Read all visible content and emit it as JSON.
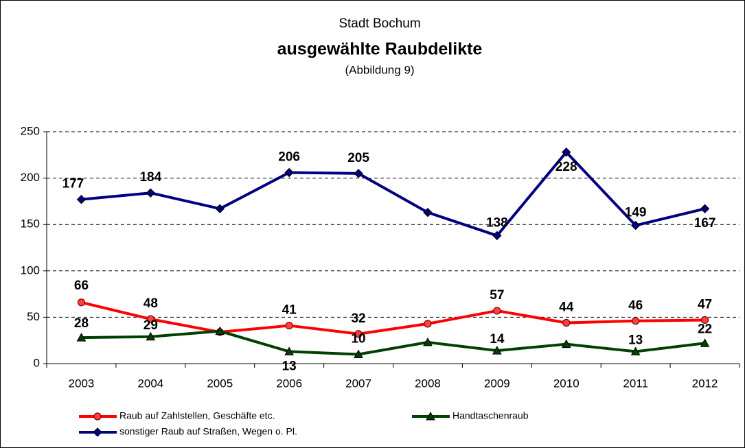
{
  "chart_data": {
    "type": "line",
    "title": "Stadt Bochum",
    "subtitle": "ausgewählte Raubdelikte",
    "annotations": [
      "(Abbildung 9)"
    ],
    "categories": [
      "2003",
      "2004",
      "2005",
      "2006",
      "2007",
      "2008",
      "2009",
      "2010",
      "2011",
      "2012"
    ],
    "series": [
      {
        "name": "Raub auf Zahlstellen, Geschäfte etc.",
        "color": "#ff0000",
        "marker": "circle",
        "values": [
          66,
          48,
          34,
          41,
          32,
          43,
          57,
          44,
          46,
          47
        ],
        "value_labels": [
          "66",
          "48",
          null,
          "41",
          "32",
          null,
          "57",
          "44",
          "46",
          "47"
        ]
      },
      {
        "name": "Handtaschenraub",
        "color": "#004000",
        "marker": "triangle",
        "values": [
          28,
          29,
          35,
          13,
          10,
          23,
          14,
          21,
          13,
          22
        ],
        "value_labels": [
          "28",
          "29",
          null,
          "13",
          "10",
          null,
          "14",
          null,
          "13",
          "22"
        ]
      },
      {
        "name": "sonstiger Raub auf Straßen, Wegen o. Pl.",
        "color": "#000080",
        "marker": "diamond",
        "values": [
          177,
          184,
          167,
          206,
          205,
          163,
          138,
          228,
          149,
          167
        ],
        "value_labels": [
          "177",
          "184",
          null,
          "206",
          "205",
          null,
          "138",
          "228",
          "149",
          "167"
        ]
      }
    ],
    "ylim": [
      0,
      250
    ],
    "yticks": [
      0,
      50,
      100,
      150,
      200,
      250
    ],
    "grid": true
  }
}
